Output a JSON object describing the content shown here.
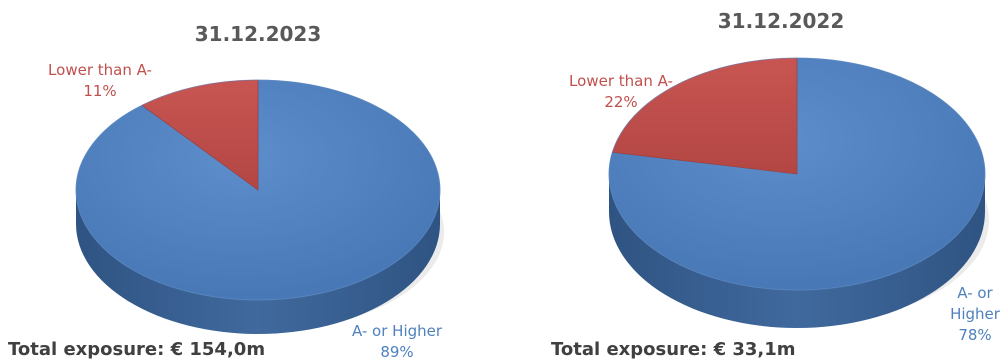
{
  "colors": {
    "blue": "#4f81bd",
    "red": "#c0504d",
    "title": "#595959",
    "total": "#404040"
  },
  "chart_data": [
    {
      "type": "pie",
      "title": "31.12.2023",
      "categories": [
        "A- or Higher",
        "Lower than A-"
      ],
      "values": [
        89,
        11
      ],
      "labels": {
        "higher": [
          "A- or Higher",
          "89%"
        ],
        "lower": [
          "Lower than A-",
          "11%"
        ]
      },
      "footer": "Total exposure: € 154,0m"
    },
    {
      "type": "pie",
      "title": "31.12.2022",
      "categories": [
        "A- or Higher",
        "Lower than A-"
      ],
      "values": [
        78,
        22
      ],
      "labels": {
        "higher": [
          "A- or",
          "Higher",
          "78%"
        ],
        "lower": [
          "Lower than A-",
          "22%"
        ]
      },
      "footer": "Total exposure: € 33,1m"
    }
  ]
}
